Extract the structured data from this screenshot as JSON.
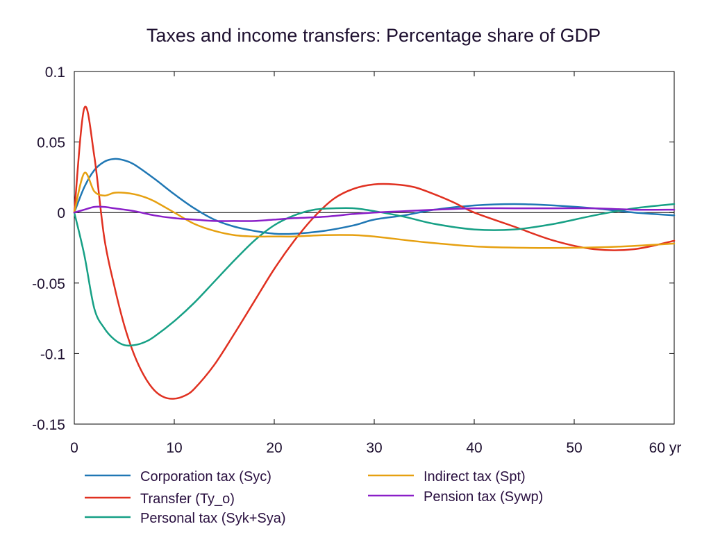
{
  "chart_data": {
    "type": "line",
    "title": "Taxes and income transfers: Percentage share of GDP",
    "xlabel": "",
    "ylabel": "",
    "xlim": [
      0,
      60
    ],
    "ylim": [
      -0.15,
      0.1
    ],
    "x_ticks": [
      0,
      10,
      20,
      30,
      40,
      50,
      60
    ],
    "x_tick_labels": [
      "0",
      "10",
      "20",
      "30",
      "40",
      "50",
      "60 yr"
    ],
    "y_ticks": [
      0.1,
      0.05,
      0,
      -0.05,
      -0.1,
      -0.15
    ],
    "y_tick_labels": [
      "0.1",
      "0.05",
      "0",
      "-0.05",
      "-0.1",
      "-0.15"
    ],
    "zero_line": true,
    "grid": false,
    "legend_position": "bottom",
    "series": [
      {
        "name": "Corporation tax (Syc)",
        "color": "#1f77b4",
        "x": [
          0,
          1,
          2,
          3,
          4,
          5,
          6,
          8,
          10,
          12,
          14,
          16,
          18,
          20,
          22,
          25,
          28,
          30,
          33,
          36,
          40,
          44,
          48,
          52,
          56,
          60
        ],
        "y": [
          0,
          0.018,
          0.03,
          0.036,
          0.038,
          0.037,
          0.034,
          0.024,
          0.013,
          0.003,
          -0.005,
          -0.01,
          -0.013,
          -0.015,
          -0.015,
          -0.013,
          -0.009,
          -0.005,
          -0.002,
          0.002,
          0.005,
          0.006,
          0.005,
          0.003,
          0.0,
          -0.002
        ]
      },
      {
        "name": "Transfer (Ty_o)",
        "color": "#e03020",
        "x": [
          0,
          1,
          2,
          3,
          4,
          5,
          6,
          7,
          8,
          9,
          10,
          11,
          12,
          14,
          16,
          18,
          20,
          22,
          24,
          26,
          28,
          30,
          32,
          34,
          36,
          38,
          40,
          44,
          48,
          52,
          56,
          60
        ],
        "y": [
          0,
          0.074,
          0.04,
          -0.018,
          -0.052,
          -0.08,
          -0.101,
          -0.116,
          -0.126,
          -0.131,
          -0.132,
          -0.13,
          -0.125,
          -0.108,
          -0.086,
          -0.063,
          -0.04,
          -0.02,
          -0.003,
          0.01,
          0.017,
          0.02,
          0.02,
          0.018,
          0.013,
          0.007,
          0.0,
          -0.01,
          -0.02,
          -0.026,
          -0.026,
          -0.02
        ]
      },
      {
        "name": "Personal tax (Syk+Sya)",
        "color": "#16a085",
        "x": [
          0,
          1,
          2,
          3,
          4,
          5,
          6,
          7,
          8,
          10,
          12,
          14,
          16,
          18,
          20,
          22,
          24,
          26,
          28,
          30,
          33,
          36,
          40,
          44,
          48,
          52,
          56,
          60
        ],
        "y": [
          0,
          -0.03,
          -0.068,
          -0.082,
          -0.09,
          -0.094,
          -0.094,
          -0.092,
          -0.088,
          -0.077,
          -0.064,
          -0.049,
          -0.034,
          -0.02,
          -0.009,
          -0.002,
          0.002,
          0.003,
          0.003,
          0.001,
          -0.003,
          -0.008,
          -0.012,
          -0.012,
          -0.008,
          -0.002,
          0.003,
          0.006
        ]
      },
      {
        "name": "Indirect tax (Spt)",
        "color": "#e6a010",
        "x": [
          0,
          1,
          2,
          3,
          4,
          5,
          6,
          7,
          8,
          10,
          12,
          14,
          16,
          18,
          20,
          22,
          25,
          28,
          30,
          35,
          40,
          45,
          50,
          55,
          60
        ],
        "y": [
          0,
          0.028,
          0.015,
          0.012,
          0.014,
          0.014,
          0.013,
          0.011,
          0.008,
          0.0,
          -0.008,
          -0.013,
          -0.016,
          -0.017,
          -0.017,
          -0.017,
          -0.016,
          -0.016,
          -0.017,
          -0.021,
          -0.024,
          -0.025,
          -0.025,
          -0.024,
          -0.022
        ]
      },
      {
        "name": "Pension tax (Sywp)",
        "color": "#8a1fc8",
        "x": [
          0,
          1,
          2,
          3,
          4,
          6,
          8,
          10,
          12,
          14,
          16,
          18,
          20,
          22,
          25,
          28,
          30,
          33,
          36,
          40,
          44,
          48,
          52,
          56,
          60
        ],
        "y": [
          0,
          0.002,
          0.004,
          0.004,
          0.003,
          0.001,
          -0.002,
          -0.004,
          -0.005,
          -0.006,
          -0.006,
          -0.006,
          -0.005,
          -0.004,
          -0.003,
          -0.001,
          0.0,
          0.001,
          0.002,
          0.003,
          0.003,
          0.003,
          0.003,
          0.002,
          0.002
        ]
      }
    ]
  }
}
